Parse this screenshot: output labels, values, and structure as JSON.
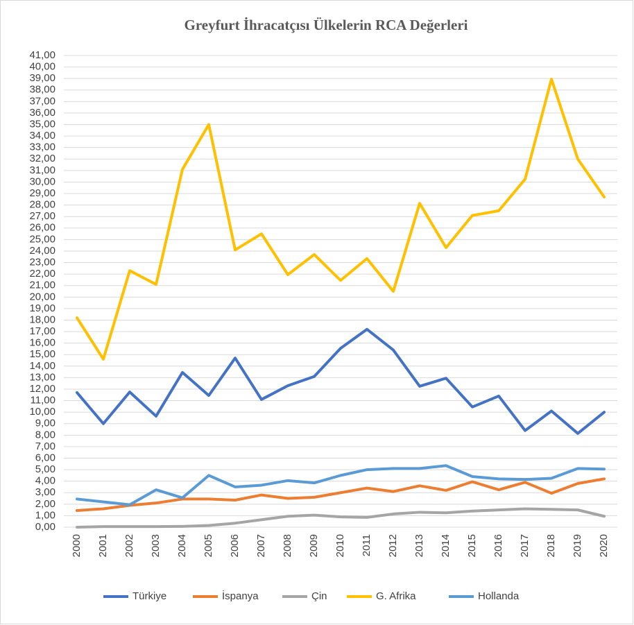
{
  "chart_data": {
    "type": "line",
    "title": "Greyfurt İhracatçısı Ülkelerin RCA Değerleri",
    "categories": [
      "2000",
      "2001",
      "2002",
      "2003",
      "2004",
      "2005",
      "2006",
      "2007",
      "2008",
      "2009",
      "2010",
      "2011",
      "2012",
      "2013",
      "2014",
      "2015",
      "2016",
      "2017",
      "2018",
      "2019",
      "2020"
    ],
    "series": [
      {
        "name": "Türkiye",
        "color": "#4472c4",
        "values": [
          11.7,
          9.0,
          11.75,
          9.65,
          13.45,
          11.45,
          14.7,
          11.1,
          12.3,
          13.1,
          15.55,
          17.2,
          15.4,
          12.25,
          12.95,
          10.45,
          11.4,
          8.4,
          10.1,
          8.15,
          10.0
        ]
      },
      {
        "name": "İspanya",
        "color": "#ed7d31",
        "values": [
          1.45,
          1.6,
          1.9,
          2.1,
          2.45,
          2.45,
          2.35,
          2.8,
          2.5,
          2.6,
          3.0,
          3.4,
          3.1,
          3.6,
          3.2,
          3.95,
          3.25,
          3.9,
          2.95,
          3.8,
          4.2
        ]
      },
      {
        "name": "Çin",
        "color": "#a5a5a5",
        "values": [
          0.0,
          0.05,
          0.05,
          0.05,
          0.07,
          0.15,
          0.35,
          0.65,
          0.95,
          1.05,
          0.9,
          0.85,
          1.15,
          1.3,
          1.25,
          1.4,
          1.5,
          1.6,
          1.55,
          1.5,
          0.95
        ]
      },
      {
        "name": "G. Afrika",
        "color": "#ffc000",
        "values": [
          18.2,
          14.6,
          22.3,
          21.1,
          31.1,
          35.0,
          24.1,
          25.5,
          21.95,
          23.7,
          21.45,
          23.35,
          20.5,
          28.15,
          24.3,
          27.1,
          27.5,
          30.25,
          38.95,
          32.0,
          28.7
        ]
      },
      {
        "name": "Hollanda",
        "color": "#5b9bd5",
        "values": [
          2.45,
          2.2,
          1.95,
          3.25,
          2.55,
          4.5,
          3.5,
          3.65,
          4.05,
          3.85,
          4.5,
          5.0,
          5.1,
          5.1,
          5.35,
          4.4,
          4.2,
          4.15,
          4.25,
          5.1,
          5.05
        ]
      }
    ],
    "ylim": [
      0,
      41
    ],
    "yticks": [
      {
        "value": 0,
        "label": "0,00"
      },
      {
        "value": 1,
        "label": "1,00"
      },
      {
        "value": 2,
        "label": "2,00"
      },
      {
        "value": 3,
        "label": "3,00"
      },
      {
        "value": 4,
        "label": "4,00"
      },
      {
        "value": 5,
        "label": "5,00"
      },
      {
        "value": 6,
        "label": "6,00"
      },
      {
        "value": 7,
        "label": "7,00"
      },
      {
        "value": 8,
        "label": "8,00"
      },
      {
        "value": 9,
        "label": "9,00"
      },
      {
        "value": 10,
        "label": "10,00"
      },
      {
        "value": 11,
        "label": "11,00"
      },
      {
        "value": 12,
        "label": "12,00"
      },
      {
        "value": 13,
        "label": "13,00"
      },
      {
        "value": 14,
        "label": "14,00"
      },
      {
        "value": 15,
        "label": "15,00"
      },
      {
        "value": 16,
        "label": "16,00"
      },
      {
        "value": 17,
        "label": "17,00"
      },
      {
        "value": 18,
        "label": "18,00"
      },
      {
        "value": 19,
        "label": "19,00"
      },
      {
        "value": 20,
        "label": "20,00"
      },
      {
        "value": 21,
        "label": "21,00"
      },
      {
        "value": 22,
        "label": "22,00"
      },
      {
        "value": 23,
        "label": "23,00"
      },
      {
        "value": 24,
        "label": "24,00"
      },
      {
        "value": 25,
        "label": "25,00"
      },
      {
        "value": 26,
        "label": "26,00"
      },
      {
        "value": 27,
        "label": "27,00"
      },
      {
        "value": 28,
        "label": "28,00"
      },
      {
        "value": 29,
        "label": "29,00"
      },
      {
        "value": 30,
        "label": "30,00"
      },
      {
        "value": 31,
        "label": "31,00"
      },
      {
        "value": 32,
        "label": "32,00"
      },
      {
        "value": 33,
        "label": "33,00"
      },
      {
        "value": 34,
        "label": "34,00"
      },
      {
        "value": 35,
        "label": "35,00"
      },
      {
        "value": 36,
        "label": "36,00"
      },
      {
        "value": 37,
        "label": "37,00"
      },
      {
        "value": 38,
        "label": "38,00"
      },
      {
        "value": 39,
        "label": "39,00"
      },
      {
        "value": 40,
        "label": "40,00"
      },
      {
        "value": 41,
        "label": "41,00"
      }
    ],
    "grid": true,
    "legend": "bottom"
  }
}
